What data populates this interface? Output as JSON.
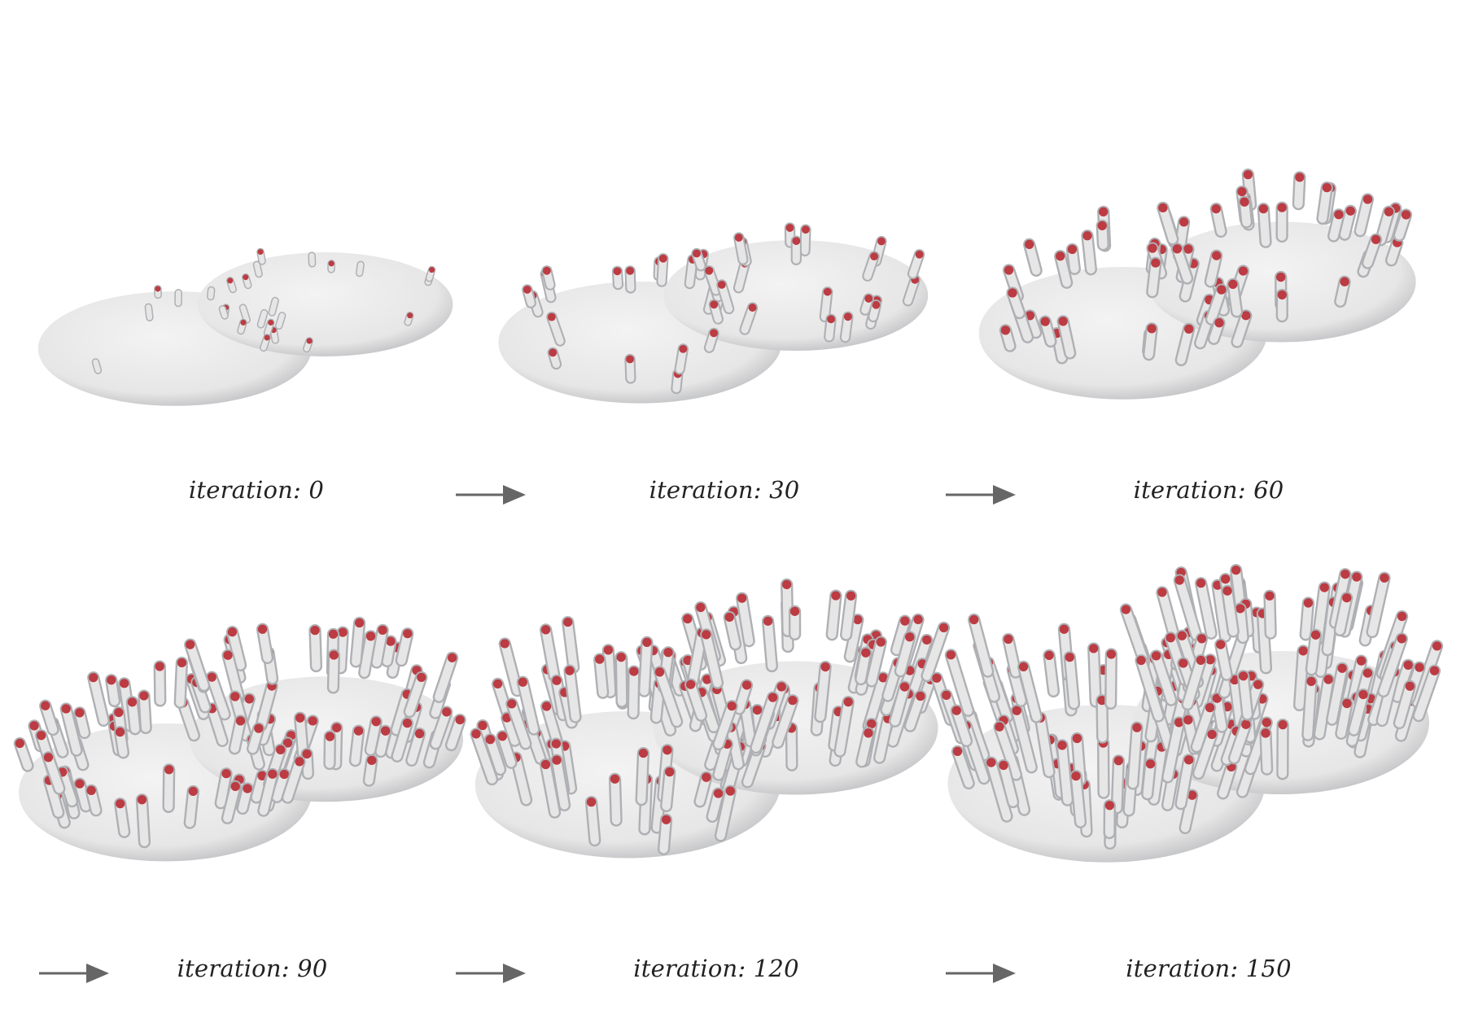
{
  "stages": [
    {
      "label": "iteration: 0"
    },
    {
      "label": "iteration: 30"
    },
    {
      "label": "iteration: 60"
    },
    {
      "label": "iteration: 90"
    },
    {
      "label": "iteration: 120"
    },
    {
      "label": "iteration: 150"
    }
  ],
  "colors": {
    "surface": "#e7e6e6",
    "surface_shadow": "#aeb0b4",
    "tip": "#b51c24",
    "arrow": "#666666",
    "text": "#222222"
  }
}
